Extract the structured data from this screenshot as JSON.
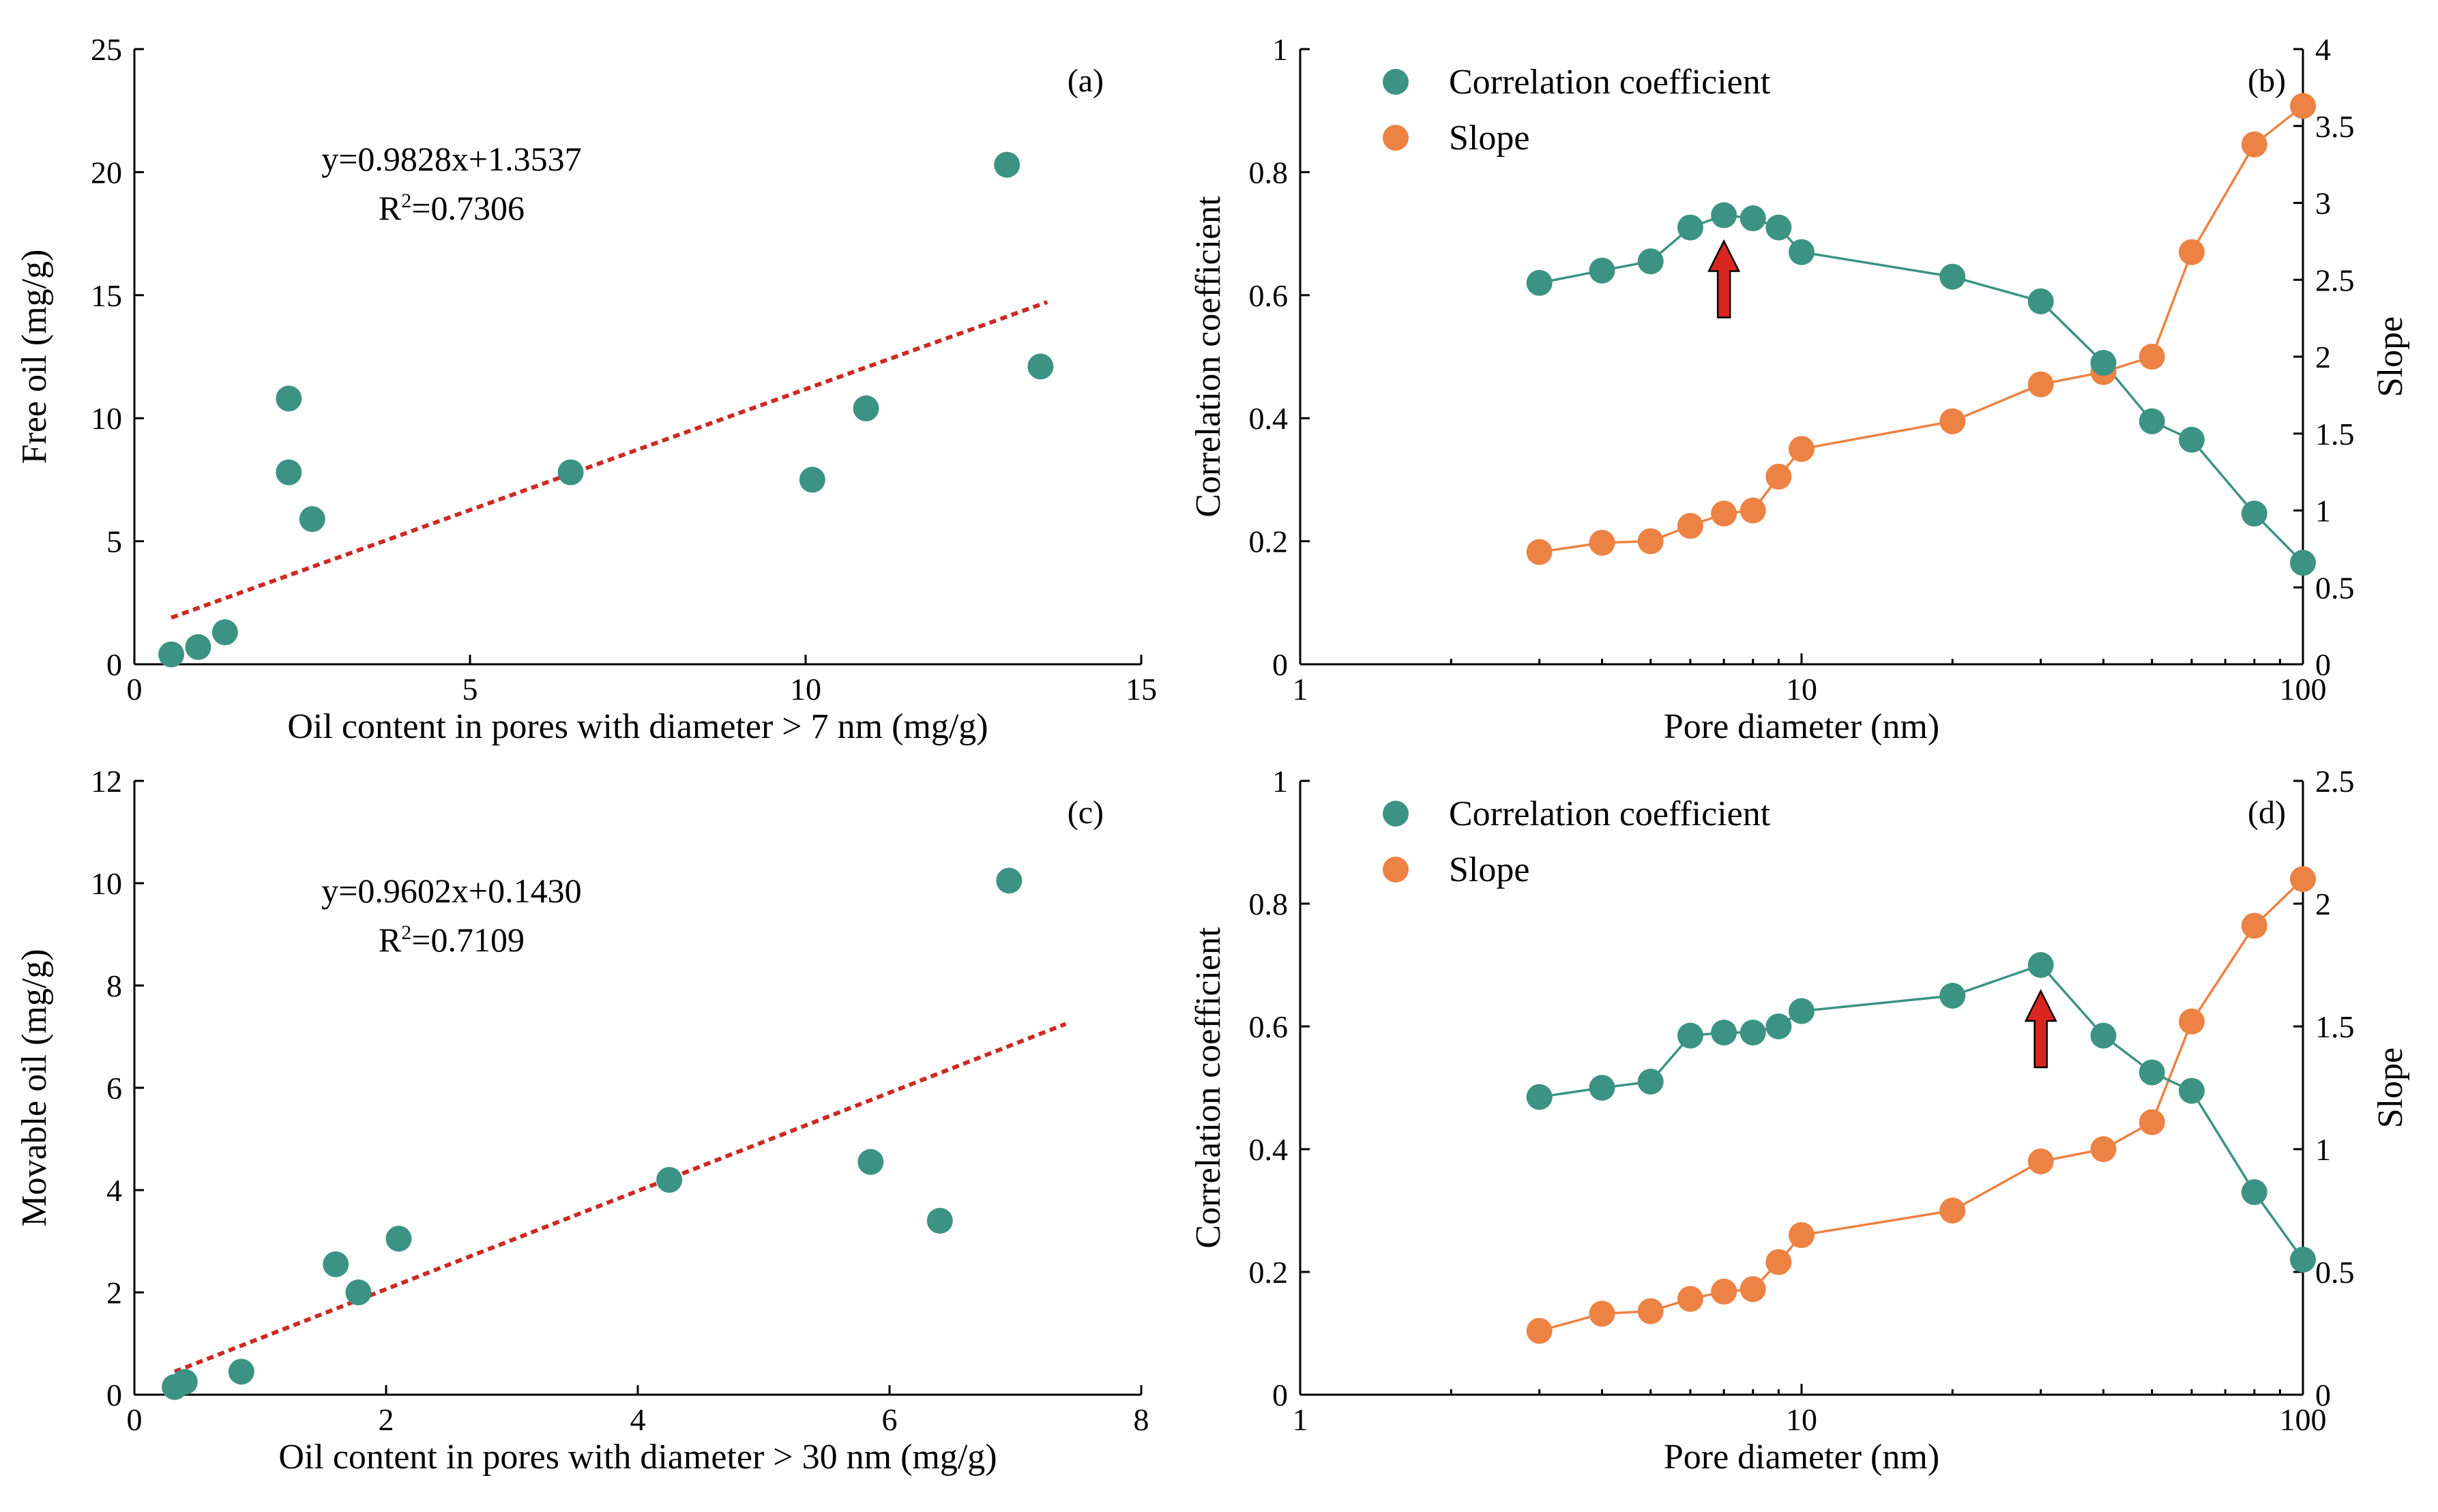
{
  "colors": {
    "teal": "#3c9383",
    "orange": "#ec8243",
    "fit_line": "#cc2a22",
    "arrow": "#d8261f"
  },
  "chart_data": [
    {
      "id": "a",
      "type": "scatter",
      "panel_label": "(a)",
      "xlabel": "Oil content in pores with diameter > 7 nm (mg/g)",
      "ylabel": "Free oil (mg/g)",
      "xlim": [
        0,
        15
      ],
      "ylim": [
        0,
        25
      ],
      "xticks": [
        0,
        5,
        10,
        15
      ],
      "yticks": [
        0,
        5,
        10,
        15,
        20,
        25
      ],
      "points": [
        {
          "x": 0.55,
          "y": 0.4
        },
        {
          "x": 0.95,
          "y": 0.7
        },
        {
          "x": 1.35,
          "y": 1.3
        },
        {
          "x": 2.3,
          "y": 10.8
        },
        {
          "x": 2.3,
          "y": 7.8
        },
        {
          "x": 2.65,
          "y": 5.9
        },
        {
          "x": 6.5,
          "y": 7.8
        },
        {
          "x": 10.1,
          "y": 7.5
        },
        {
          "x": 10.9,
          "y": 10.4
        },
        {
          "x": 13.0,
          "y": 20.3
        },
        {
          "x": 13.5,
          "y": 12.1
        }
      ],
      "fit": {
        "slope": 0.9828,
        "intercept": 1.3537,
        "x_range": [
          0.55,
          13.6
        ]
      },
      "equation": "y=0.9828x+1.3537",
      "r2_label": "R",
      "r2_sup": "2",
      "r2_value": "=0.7306"
    },
    {
      "id": "b",
      "type": "line",
      "panel_label": "(b)",
      "xscale": "log",
      "xlabel": "Pore diameter (nm)",
      "ylabel": "Correlation coefficient",
      "y2label": "Slope",
      "xlim": [
        1,
        100
      ],
      "ylim": [
        0,
        1
      ],
      "y2lim": [
        0,
        4
      ],
      "xticks": [
        1,
        10,
        100
      ],
      "yticks": [
        0,
        0.2,
        0.4,
        0.6,
        0.8,
        1
      ],
      "y2ticks": [
        0,
        0.5,
        1,
        1.5,
        2,
        2.5,
        3,
        3.5,
        4
      ],
      "x": [
        3,
        4,
        5,
        6,
        7,
        8,
        9,
        10,
        20,
        30,
        40,
        50,
        60,
        80,
        100
      ],
      "series": [
        {
          "name": "Correlation coefficient",
          "axis": "left",
          "values": [
            0.62,
            0.64,
            0.655,
            0.71,
            0.73,
            0.725,
            0.71,
            0.67,
            0.63,
            0.59,
            0.49,
            0.395,
            0.365,
            0.245,
            0.165
          ]
        },
        {
          "name": "Slope",
          "axis": "right",
          "values": [
            0.73,
            0.79,
            0.8,
            0.9,
            0.98,
            1.0,
            1.22,
            1.4,
            1.58,
            1.82,
            1.9,
            2.0,
            2.68,
            3.38,
            3.63
          ]
        }
      ],
      "arrow_at_x": 7,
      "legend": [
        "Correlation coefficient",
        "Slope"
      ]
    },
    {
      "id": "c",
      "type": "scatter",
      "panel_label": "(c)",
      "xlabel": "Oil content in pores with diameter > 30 nm (mg/g)",
      "ylabel": "Movable oil (mg/g)",
      "xlim": [
        0,
        8
      ],
      "ylim": [
        0,
        12
      ],
      "xticks": [
        0,
        2,
        4,
        6,
        8
      ],
      "yticks": [
        0,
        2,
        4,
        6,
        8,
        10,
        12
      ],
      "points": [
        {
          "x": 0.32,
          "y": 0.15
        },
        {
          "x": 0.4,
          "y": 0.25
        },
        {
          "x": 0.85,
          "y": 0.45
        },
        {
          "x": 1.6,
          "y": 2.55
        },
        {
          "x": 1.78,
          "y": 2.0
        },
        {
          "x": 2.1,
          "y": 3.05
        },
        {
          "x": 4.25,
          "y": 4.2
        },
        {
          "x": 5.85,
          "y": 4.55
        },
        {
          "x": 6.4,
          "y": 3.4
        },
        {
          "x": 6.95,
          "y": 10.05
        }
      ],
      "fit": {
        "slope": 0.9602,
        "intercept": 0.143,
        "x_range": [
          0.32,
          7.4
        ]
      },
      "equation": "y=0.9602x+0.1430",
      "r2_label": "R",
      "r2_sup": "2",
      "r2_value": "=0.7109"
    },
    {
      "id": "d",
      "type": "line",
      "panel_label": "(d)",
      "xscale": "log",
      "xlabel": "Pore diameter (nm)",
      "ylabel": "Correlation coefficient",
      "y2label": "Slope",
      "xlim": [
        1,
        100
      ],
      "ylim": [
        0,
        1
      ],
      "y2lim": [
        0,
        2.5
      ],
      "xticks": [
        1,
        10,
        100
      ],
      "yticks": [
        0,
        0.2,
        0.4,
        0.6,
        0.8,
        1
      ],
      "y2ticks": [
        0,
        0.5,
        1,
        1.5,
        2,
        2.5
      ],
      "x": [
        3,
        4,
        5,
        6,
        7,
        8,
        9,
        10,
        20,
        30,
        40,
        50,
        60,
        80,
        100
      ],
      "series": [
        {
          "name": "Correlation coefficient",
          "axis": "left",
          "values": [
            0.485,
            0.5,
            0.51,
            0.585,
            0.59,
            0.59,
            0.6,
            0.625,
            0.65,
            0.7,
            0.585,
            0.525,
            0.495,
            0.33,
            0.22
          ]
        },
        {
          "name": "Slope",
          "axis": "right",
          "values": [
            0.26,
            0.33,
            0.34,
            0.39,
            0.42,
            0.43,
            0.54,
            0.65,
            0.75,
            0.95,
            1.0,
            1.11,
            1.52,
            1.91,
            2.1
          ]
        }
      ],
      "arrow_at_x": 30,
      "legend": [
        "Correlation coefficient",
        "Slope"
      ]
    }
  ]
}
